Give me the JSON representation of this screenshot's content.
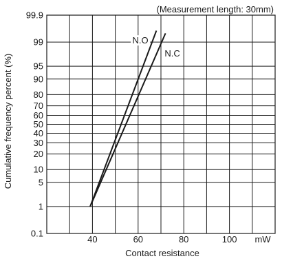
{
  "chart_data": {
    "type": "line",
    "title": "",
    "annotation": "(Measurement length: 30mm)",
    "xlabel": "Contact resistance",
    "ylabel": "Cumulative frequency percent (%)",
    "x_unit": "mW",
    "xlim": [
      20,
      120
    ],
    "x_ticks": [
      40,
      60,
      80,
      100
    ],
    "x_gridlines": [
      20,
      30,
      40,
      50,
      60,
      70,
      80,
      90,
      100,
      110,
      120
    ],
    "y_scale": "probability",
    "y_ticks": [
      0.1,
      1,
      5,
      10,
      20,
      30,
      40,
      50,
      60,
      70,
      80,
      90,
      95,
      99,
      99.9
    ],
    "y_tick_labels": [
      "0.1",
      "1",
      "5",
      "10",
      "20",
      "30",
      "40",
      "50",
      "60",
      "70",
      "80",
      "90",
      "95",
      "99",
      "99.9"
    ],
    "grid": true,
    "series": [
      {
        "name": "N.O",
        "x": [
          39,
          68
        ],
        "y": [
          1,
          99.6
        ]
      },
      {
        "name": "N.C",
        "x": [
          39,
          72
        ],
        "y": [
          1,
          99.5
        ]
      }
    ],
    "series_label_anchor": [
      {
        "name": "N.O",
        "x": 61,
        "y": 99
      },
      {
        "name": "N.C",
        "x": 75,
        "y": 97.5
      }
    ],
    "colors": {
      "line": "#1a1a1a",
      "grid": "#1a1a1a",
      "text": "#1a1a1a"
    }
  }
}
